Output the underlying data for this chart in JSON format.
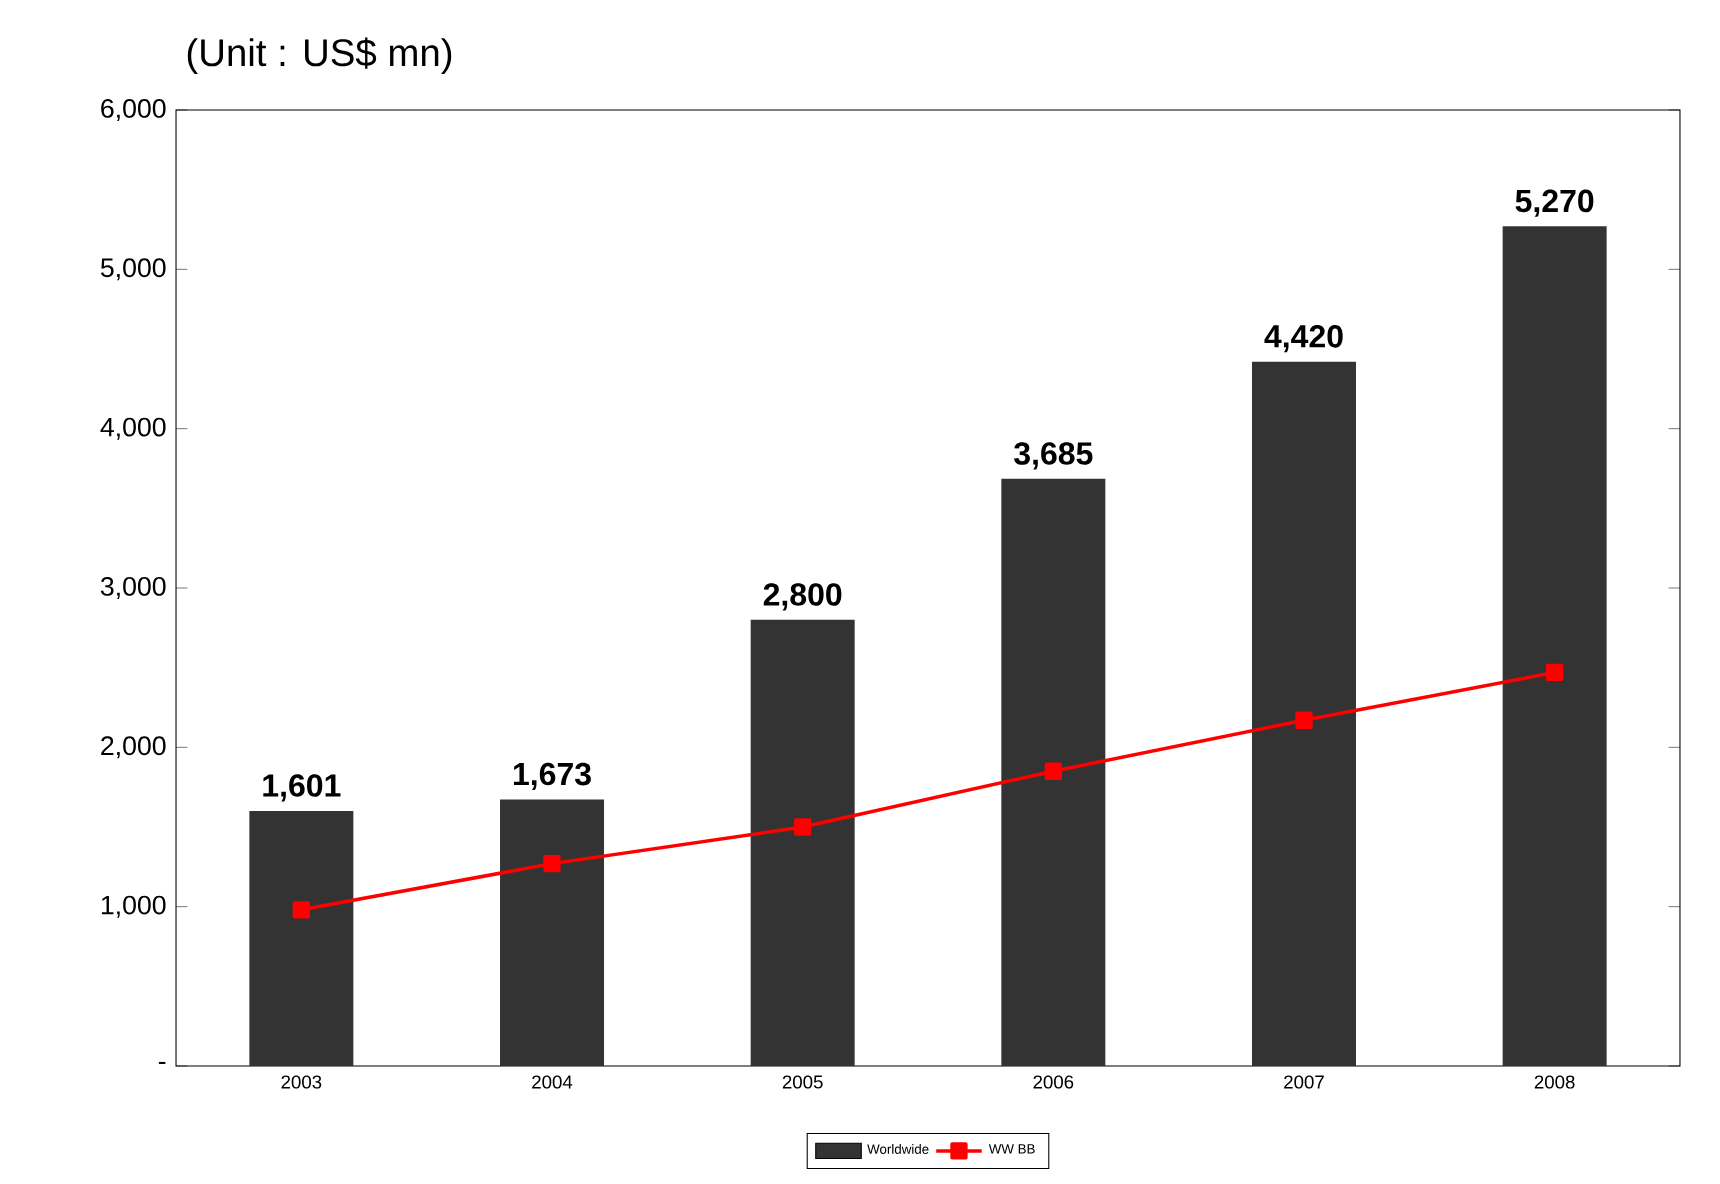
{
  "chart_data": {
    "type": "bar",
    "title": "(Unit : US$ mn)",
    "categories": [
      "2003",
      "2004",
      "2005",
      "2006",
      "2007",
      "2008"
    ],
    "series": [
      {
        "name": "Worldwide",
        "color": "#333333",
        "values": [
          1601,
          1673,
          2800,
          3685,
          4420,
          5270
        ],
        "value_labels": [
          "1,601",
          "1,673",
          "2,800",
          "3,685",
          "4,420",
          "5,270"
        ]
      },
      {
        "name": "WW BB",
        "type": "line",
        "color": "#ff0000",
        "values": [
          980,
          1270,
          1500,
          1850,
          2170,
          2470
        ],
        "marker": "square"
      }
    ],
    "ylim": [
      0,
      6000
    ],
    "yticks": [
      {
        "value": 0,
        "label": "-"
      },
      {
        "value": 1000,
        "label": "1,000"
      },
      {
        "value": 2000,
        "label": "2,000"
      },
      {
        "value": 3000,
        "label": "3,000"
      },
      {
        "value": 4000,
        "label": "4,000"
      },
      {
        "value": 5000,
        "label": "5,000"
      },
      {
        "value": 6000,
        "label": "6,000"
      }
    ],
    "legend": "bottom",
    "grid": false
  }
}
